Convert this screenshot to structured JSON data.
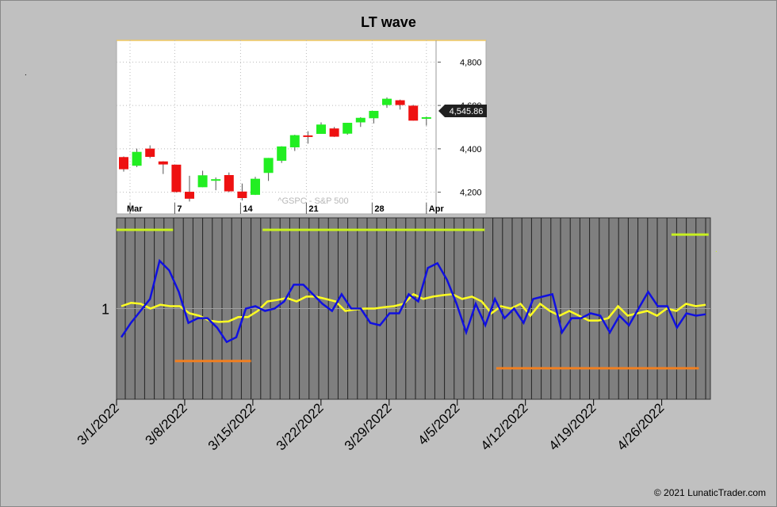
{
  "title": "LT wave",
  "credit": "© 2021 LunaticTrader.com",
  "colors": {
    "background": "#c0c0c0",
    "candle_up": "#22ee22",
    "candle_down": "#ee1111",
    "wave_line": "#1010e0",
    "average_line": "#ffff22",
    "upper_band": "#c8f020",
    "lower_band": "#f07f20",
    "plot_fill": "#7f7f7f"
  },
  "chart_data": [
    {
      "type": "candlestick",
      "watermark": "^GSPC - S&P 500",
      "last_price": "4,545.86",
      "ylim": [
        4100,
        4900
      ],
      "y_ticks": [
        4200,
        4400,
        4600,
        4800
      ],
      "y_tick_labels": [
        "4,200",
        "4,400",
        "4,600",
        "4,800"
      ],
      "x_tick_labels": [
        "Mar",
        "7",
        "14",
        "21",
        "28",
        "Apr"
      ],
      "grid": true,
      "candles": [
        {
          "date": "2022-03-01",
          "open": 4362,
          "high": 4365,
          "low": 4295,
          "close": 4306
        },
        {
          "date": "2022-03-02",
          "open": 4322,
          "high": 4401,
          "low": 4316,
          "close": 4386
        },
        {
          "date": "2022-03-03",
          "open": 4401,
          "high": 4416,
          "low": 4357,
          "close": 4363
        },
        {
          "date": "2022-03-04",
          "open": 4342,
          "high": 4343,
          "low": 4284,
          "close": 4328
        },
        {
          "date": "2022-03-07",
          "open": 4327,
          "high": 4327,
          "low": 4199,
          "close": 4201
        },
        {
          "date": "2022-03-08",
          "open": 4202,
          "high": 4276,
          "low": 4157,
          "close": 4170
        },
        {
          "date": "2022-03-09",
          "open": 4223,
          "high": 4299,
          "low": 4223,
          "close": 4278
        },
        {
          "date": "2022-03-10",
          "open": 4253,
          "high": 4268,
          "low": 4209,
          "close": 4260
        },
        {
          "date": "2022-03-11",
          "open": 4279,
          "high": 4291,
          "low": 4200,
          "close": 4204
        },
        {
          "date": "2022-03-14",
          "open": 4203,
          "high": 4240,
          "low": 4162,
          "close": 4173
        },
        {
          "date": "2022-03-15",
          "open": 4188,
          "high": 4271,
          "low": 4187,
          "close": 4262
        },
        {
          "date": "2022-03-16",
          "open": 4289,
          "high": 4358,
          "low": 4252,
          "close": 4358
        },
        {
          "date": "2022-03-17",
          "open": 4345,
          "high": 4412,
          "low": 4335,
          "close": 4411
        },
        {
          "date": "2022-03-18",
          "open": 4407,
          "high": 4465,
          "low": 4390,
          "close": 4463
        },
        {
          "date": "2022-03-21",
          "open": 4462,
          "high": 4481,
          "low": 4424,
          "close": 4461
        },
        {
          "date": "2022-03-22",
          "open": 4469,
          "high": 4522,
          "low": 4469,
          "close": 4512
        },
        {
          "date": "2022-03-23",
          "open": 4494,
          "high": 4501,
          "low": 4455,
          "close": 4456
        },
        {
          "date": "2022-03-24",
          "open": 4470,
          "high": 4520,
          "low": 4465,
          "close": 4520
        },
        {
          "date": "2022-03-25",
          "open": 4522,
          "high": 4546,
          "low": 4501,
          "close": 4543
        },
        {
          "date": "2022-03-28",
          "open": 4541,
          "high": 4575,
          "low": 4517,
          "close": 4575
        },
        {
          "date": "2022-03-29",
          "open": 4602,
          "high": 4637,
          "low": 4589,
          "close": 4631
        },
        {
          "date": "2022-03-30",
          "open": 4624,
          "high": 4627,
          "low": 4581,
          "close": 4602
        },
        {
          "date": "2022-03-31",
          "open": 4599,
          "high": 4603,
          "low": 4530,
          "close": 4530
        },
        {
          "date": "2022-04-01",
          "open": 4540,
          "high": 4548,
          "low": 4507,
          "close": 4545.86
        }
      ]
    },
    {
      "type": "line",
      "y_tick_labels": [
        "1"
      ],
      "x_tick_labels": [
        "3/1/2022",
        "3/8/2022",
        "3/15/2022",
        "3/22/2022",
        "3/29/2022",
        "4/5/2022",
        "4/12/2022",
        "4/19/2022",
        "4/26/2022"
      ],
      "xlim": [
        "2022-03-01",
        "2022-05-01"
      ],
      "ylim": [
        -1.9,
        1.9
      ],
      "reference_level": 1,
      "series": [
        {
          "color_key": "wave_line",
          "values": [
            -0.6,
            -0.3,
            -0.05,
            0.2,
            1.0,
            0.8,
            0.35,
            -0.3,
            -0.2,
            -0.2,
            -0.4,
            -0.7,
            -0.6,
            0.0,
            0.05,
            -0.05,
            0.0,
            0.15,
            0.5,
            0.5,
            0.3,
            0.1,
            -0.05,
            0.3,
            0.0,
            0.0,
            -0.3,
            -0.35,
            -0.1,
            -0.1,
            0.3,
            0.15,
            0.85,
            0.95,
            0.6,
            0.1,
            -0.5,
            0.1,
            -0.35,
            0.2,
            -0.2,
            0.0,
            -0.3,
            0.2,
            0.25,
            0.3,
            -0.5,
            -0.2,
            -0.2,
            -0.1,
            -0.15,
            -0.5,
            -0.15,
            -0.35,
            0.0,
            0.35,
            0.05,
            0.05,
            -0.4,
            -0.1,
            -0.15,
            -0.12
          ]
        },
        {
          "color_key": "average_line",
          "values": [
            0.05,
            0.12,
            0.1,
            0.0,
            0.08,
            0.05,
            0.05,
            -0.1,
            -0.15,
            -0.25,
            -0.28,
            -0.27,
            -0.18,
            -0.18,
            -0.05,
            0.15,
            0.18,
            0.22,
            0.15,
            0.25,
            0.25,
            0.2,
            0.15,
            -0.05,
            -0.02,
            0.0,
            0.0,
            0.03,
            0.05,
            0.1,
            0.3,
            0.2,
            0.25,
            0.28,
            0.3,
            0.2,
            0.25,
            0.15,
            -0.1,
            0.05,
            0.0,
            0.1,
            -0.15,
            0.1,
            -0.05,
            -0.15,
            -0.05,
            -0.15,
            -0.25,
            -0.25,
            -0.2,
            0.05,
            -0.15,
            -0.1,
            -0.05,
            -0.15,
            0.0,
            -0.05,
            0.1,
            0.05,
            0.08
          ]
        }
      ],
      "upper_band_segments": [
        {
          "from": "2022-03-01",
          "to": "2022-03-06",
          "value": 1.65
        },
        {
          "from": "2022-03-16",
          "to": "2022-04-07",
          "value": 1.65
        },
        {
          "from": "2022-04-27",
          "to": "2022-04-30",
          "value": 1.55
        }
      ],
      "lower_band_segments": [
        {
          "from": "2022-03-07",
          "to": "2022-03-14",
          "value": -1.1
        },
        {
          "from": "2022-04-09",
          "to": "2022-04-29",
          "value": -1.25
        }
      ]
    }
  ]
}
